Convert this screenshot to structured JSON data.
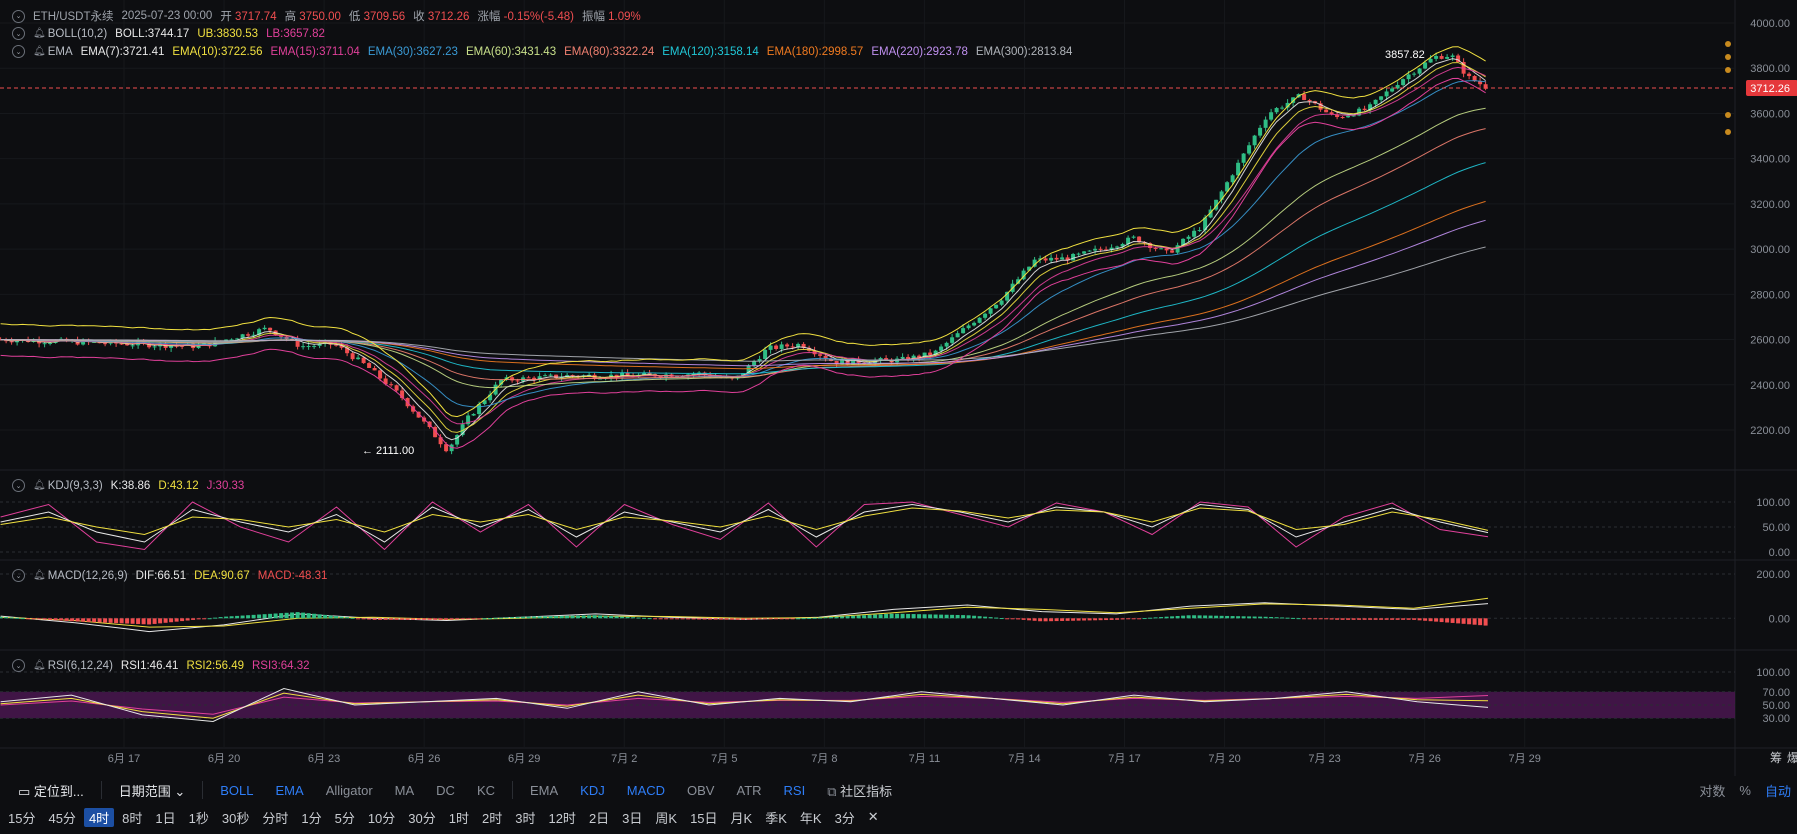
{
  "header": {
    "symbol": "ETH/USDT永续",
    "datetime": "2025-07-23 00:00",
    "open_label": "开",
    "open": "3717.74",
    "high_label": "高",
    "high": "3750.00",
    "low_label": "低",
    "low": "3709.56",
    "close_label": "收",
    "close": "3712.26",
    "change_label": "涨幅",
    "change": "-0.15%(-5.48)",
    "amp_label": "振幅",
    "amp": "1.09%"
  },
  "boll": {
    "name": "BOLL(10,2)",
    "mid": "BOLL:3744.17",
    "ub": "UB:3830.53",
    "lb": "LB:3657.82"
  },
  "ema": {
    "name": "EMA",
    "items": [
      {
        "text": "EMA(7):3721.41",
        "color": "#e8e8e8"
      },
      {
        "text": "EMA(10):3722.56",
        "color": "#f0e040"
      },
      {
        "text": "EMA(15):3711.04",
        "color": "#e0409a"
      },
      {
        "text": "EMA(30):3627.23",
        "color": "#3a9bd6"
      },
      {
        "text": "EMA(60):3431.43",
        "color": "#c8e08a"
      },
      {
        "text": "EMA(80):3322.24",
        "color": "#f08070"
      },
      {
        "text": "EMA(120):3158.14",
        "color": "#20c8d8"
      },
      {
        "text": "EMA(180):2998.57",
        "color": "#f07a20"
      },
      {
        "text": "EMA(220):2923.78",
        "color": "#c090f0"
      },
      {
        "text": "EMA(300):2813.84",
        "color": "#b0b4ba"
      }
    ]
  },
  "kdj": {
    "name": "KDJ(9,3,3)",
    "k": "K:38.86",
    "d": "D:43.12",
    "j": "J:30.33"
  },
  "macd": {
    "name": "MACD(12,26,9)",
    "dif": "DIF:66.51",
    "dea": "DEA:90.67",
    "macd": "MACD:-48.31"
  },
  "rsi": {
    "name": "RSI(6,12,24)",
    "r1": "RSI1:46.41",
    "r2": "RSI2:56.49",
    "r3": "RSI3:64.32"
  },
  "price_tag": "3712.26",
  "high_marker": "3857.82",
  "low_marker": "← 2111.00",
  "colors": {
    "up": "#2fbd85",
    "down": "#f04e50",
    "bg": "#0d0e11",
    "accent": "#2e7df7"
  },
  "chart_data": {
    "type": "candlestick",
    "main_yticks": [
      "4000.00",
      "3800.00",
      "3600.00",
      "3400.00",
      "3200.00",
      "3000.00",
      "2800.00",
      "2600.00",
      "2400.00",
      "2200.00"
    ],
    "kdj_yticks": [
      "100.00",
      "50.00",
      "0.00"
    ],
    "macd_yticks": [
      "200.00",
      "0.00"
    ],
    "rsi_yticks": [
      "100.00",
      "70.00",
      "50.00",
      "30.00"
    ],
    "x_ticks": [
      "6月 17",
      "6月 20",
      "6月 23",
      "6月 26",
      "6月 29",
      "7月 2",
      "7月 5",
      "7月 8",
      "7月 11",
      "7月 14",
      "7月 17",
      "7月 20",
      "7月 23",
      "7月 26",
      "7月 29"
    ],
    "price_path": [
      [
        0,
        2600
      ],
      [
        6,
        2570
      ],
      [
        8,
        2650
      ],
      [
        9,
        2570
      ],
      [
        10,
        2580
      ],
      [
        11,
        2480
      ],
      [
        12,
        2350
      ],
      [
        13,
        2180
      ],
      [
        13.4,
        2111
      ],
      [
        14,
        2250
      ],
      [
        15,
        2420
      ],
      [
        17,
        2440
      ],
      [
        19,
        2440
      ],
      [
        21,
        2450
      ],
      [
        22,
        2420
      ],
      [
        23,
        2560
      ],
      [
        24,
        2580
      ],
      [
        25,
        2500
      ],
      [
        27,
        2510
      ],
      [
        28,
        2540
      ],
      [
        29,
        2660
      ],
      [
        30,
        2780
      ],
      [
        31,
        2950
      ],
      [
        32,
        2960
      ],
      [
        33,
        3000
      ],
      [
        34,
        3050
      ],
      [
        35,
        2980
      ],
      [
        36,
        3100
      ],
      [
        37,
        3350
      ],
      [
        38,
        3600
      ],
      [
        39,
        3680
      ],
      [
        40,
        3580
      ],
      [
        41,
        3620
      ],
      [
        42,
        3750
      ],
      [
        43,
        3850
      ],
      [
        43.5,
        3857.82
      ],
      [
        44,
        3760
      ],
      [
        44.6,
        3712.26
      ]
    ],
    "kdj": {
      "k": [
        60,
        80,
        40,
        20,
        85,
        60,
        40,
        75,
        20,
        90,
        50,
        85,
        30,
        80,
        60,
        40,
        85,
        30,
        80,
        95,
        80,
        60,
        90,
        80,
        50,
        95,
        85,
        30,
        60,
        88,
        60,
        38.86
      ],
      "d": [
        55,
        70,
        50,
        35,
        70,
        65,
        50,
        65,
        40,
        75,
        60,
        75,
        45,
        70,
        62,
        50,
        72,
        45,
        72,
        88,
        82,
        68,
        84,
        80,
        60,
        88,
        82,
        45,
        55,
        80,
        65,
        43.12
      ],
      "j": [
        70,
        95,
        20,
        5,
        100,
        50,
        20,
        90,
        5,
        100,
        40,
        95,
        10,
        95,
        55,
        25,
        98,
        10,
        95,
        100,
        75,
        50,
        98,
        80,
        35,
        100,
        90,
        10,
        70,
        98,
        45,
        30.33
      ]
    },
    "macd": {
      "dif": [
        10,
        -20,
        -60,
        -30,
        20,
        0,
        -10,
        5,
        20,
        5,
        -5,
        5,
        40,
        60,
        30,
        20,
        55,
        70,
        55,
        40,
        66.51
      ],
      "dea": [
        5,
        -10,
        -40,
        -35,
        0,
        5,
        -5,
        0,
        10,
        8,
        0,
        3,
        25,
        50,
        40,
        25,
        45,
        65,
        60,
        45,
        90.67
      ]
    },
    "rsi": {
      "r1": [
        55,
        65,
        35,
        25,
        75,
        50,
        55,
        60,
        45,
        70,
        50,
        60,
        55,
        70,
        60,
        50,
        65,
        55,
        60,
        70,
        55,
        46.41
      ],
      "r2": [
        52,
        60,
        40,
        30,
        68,
        52,
        55,
        58,
        48,
        65,
        52,
        58,
        56,
        66,
        60,
        52,
        62,
        56,
        60,
        66,
        58,
        56.49
      ],
      "r3": [
        50,
        56,
        44,
        36,
        62,
        53,
        55,
        56,
        50,
        60,
        54,
        57,
        57,
        63,
        60,
        54,
        60,
        57,
        60,
        63,
        60,
        64.32
      ]
    }
  },
  "toolbar": {
    "locate": "定位到...",
    "range": "日期范围 ⌄",
    "main_inds": [
      "BOLL",
      "EMA",
      "Alligator",
      "MA",
      "DC",
      "KC"
    ],
    "sub_inds": [
      "EMA",
      "KDJ",
      "MACD",
      "OBV",
      "ATR",
      "RSI"
    ],
    "community": "社区指标",
    "right": [
      "对数",
      "%",
      "自动"
    ]
  },
  "timeframes": [
    "15分",
    "45分",
    "4时",
    "8时",
    "1日",
    "1秒",
    "30秒",
    "分时",
    "1分",
    "5分",
    "10分",
    "30分",
    "1时",
    "2时",
    "3时",
    "12时",
    "2日",
    "3日",
    "周K",
    "15日",
    "月K",
    "季K",
    "年K",
    "3分"
  ],
  "selected_tf": "4时",
  "right_edge": {
    "label1": "筹",
    "label2": "爆"
  }
}
